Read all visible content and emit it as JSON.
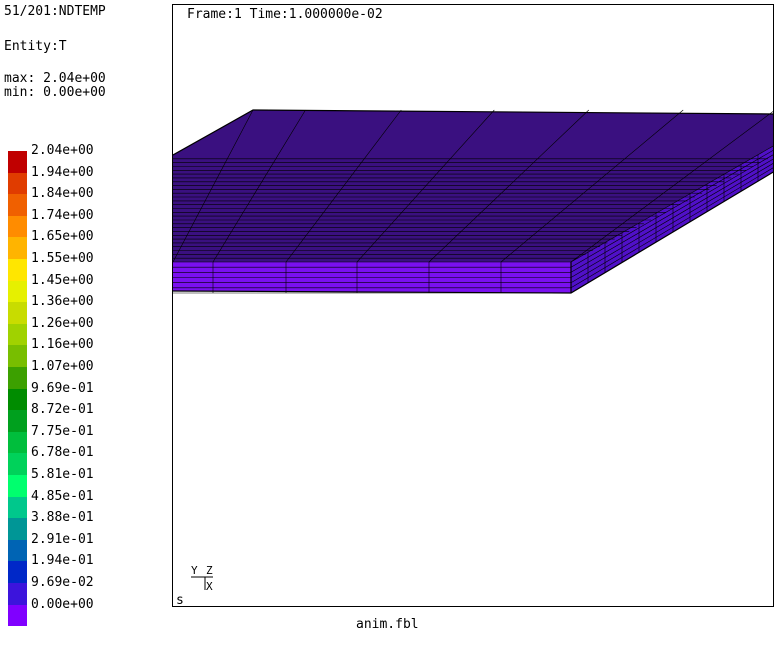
{
  "header": {
    "step": "51/201:NDTEMP",
    "entity": "Entity:T",
    "max": "max: 2.04e+00",
    "min": "min: 0.00e+00"
  },
  "legend": {
    "entries": [
      {
        "label": "2.04e+00",
        "color": "#c00000"
      },
      {
        "label": "1.94e+00",
        "color": "#e03c00"
      },
      {
        "label": "1.84e+00",
        "color": "#f06000"
      },
      {
        "label": "1.74e+00",
        "color": "#ff8c00"
      },
      {
        "label": "1.65e+00",
        "color": "#ffb400"
      },
      {
        "label": "1.55e+00",
        "color": "#ffe600"
      },
      {
        "label": "1.45e+00",
        "color": "#e6f000"
      },
      {
        "label": "1.36e+00",
        "color": "#c8dc00"
      },
      {
        "label": "1.26e+00",
        "color": "#a0d200"
      },
      {
        "label": "1.16e+00",
        "color": "#78be00"
      },
      {
        "label": "1.07e+00",
        "color": "#3ca000"
      },
      {
        "label": "9.69e-01",
        "color": "#008c00"
      },
      {
        "label": "8.72e-01",
        "color": "#00a01e"
      },
      {
        "label": "7.75e-01",
        "color": "#00be3c"
      },
      {
        "label": "6.78e-01",
        "color": "#00d25a"
      },
      {
        "label": "5.81e-01",
        "color": "#00ff6e"
      },
      {
        "label": "4.85e-01",
        "color": "#00c88c"
      },
      {
        "label": "3.88e-01",
        "color": "#009696"
      },
      {
        "label": "2.91e-01",
        "color": "#0064b4"
      },
      {
        "label": "1.94e-01",
        "color": "#0028c8"
      },
      {
        "label": "9.69e-02",
        "color": "#3c14dc"
      },
      {
        "label": "0.00e+00",
        "color": "#8000ff"
      }
    ]
  },
  "viewport": {
    "frame_text": "Frame:1 Time:1.000000e-02",
    "axis_y": "Y",
    "axis_z": "Z",
    "axis_x": "X",
    "corner_label": "s"
  },
  "filename": "anim.fbl",
  "colors": {
    "plate_top": "#3a1080",
    "plate_front": "#7a10f0",
    "plate_side": "#5010c8",
    "mesh_line": "#000000"
  }
}
